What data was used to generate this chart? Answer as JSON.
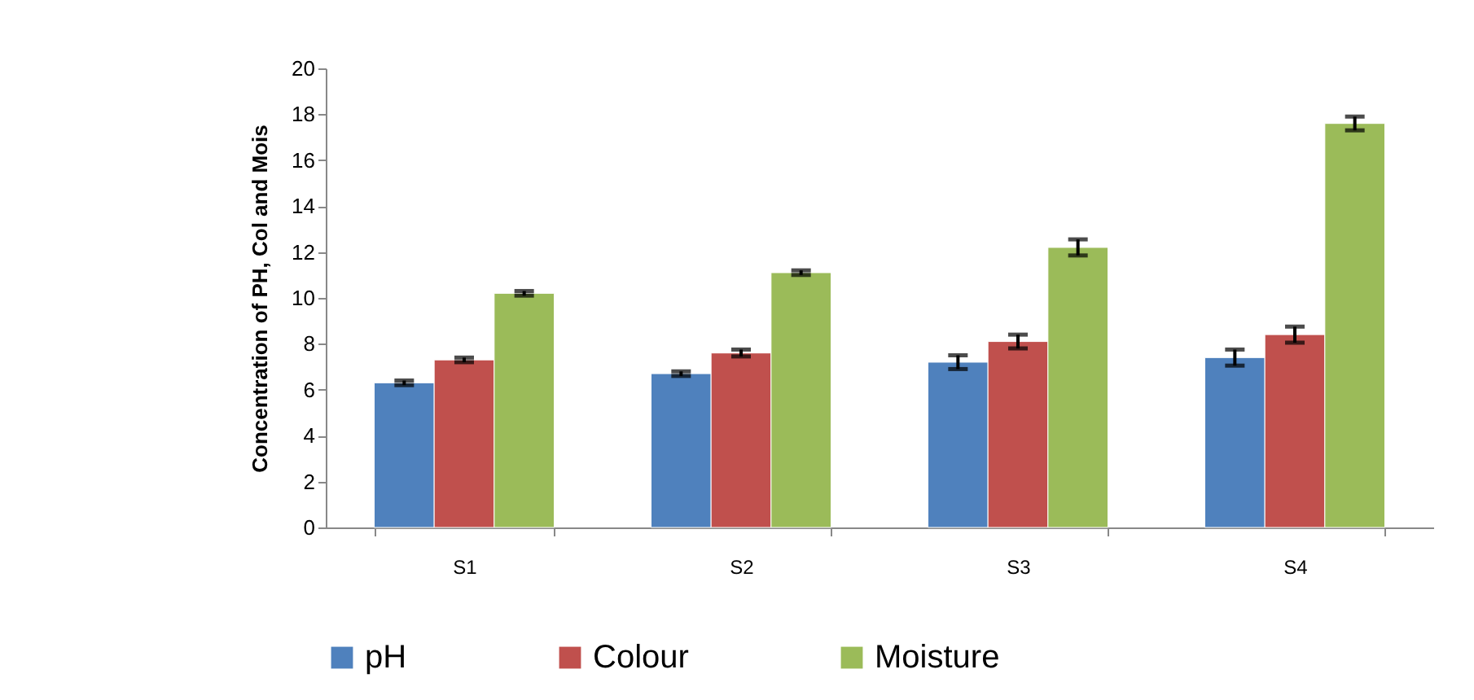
{
  "chart_data": {
    "type": "bar",
    "ylabel": "Concentration of PH, Col and Mois",
    "categories": [
      "S1",
      "S2",
      "S3",
      "S4"
    ],
    "series": [
      {
        "name": "pH",
        "color": "#4f81bd",
        "values": [
          6.3,
          6.7,
          7.2,
          7.4
        ],
        "errors": [
          0.1,
          0.1,
          0.3,
          0.35
        ]
      },
      {
        "name": "Colour",
        "color": "#c0504d",
        "values": [
          7.3,
          7.6,
          8.1,
          8.4
        ],
        "errors": [
          0.1,
          0.15,
          0.3,
          0.35
        ]
      },
      {
        "name": "Moisture",
        "color": "#9bbb59",
        "values": [
          10.2,
          11.1,
          12.2,
          17.6
        ],
        "errors": [
          0.1,
          0.1,
          0.35,
          0.3
        ]
      }
    ],
    "ylim": [
      0,
      20
    ],
    "yticks": [
      0,
      2,
      4,
      6,
      8,
      10,
      12,
      14,
      16,
      18,
      20
    ],
    "grid": false,
    "legend": "bottom"
  }
}
